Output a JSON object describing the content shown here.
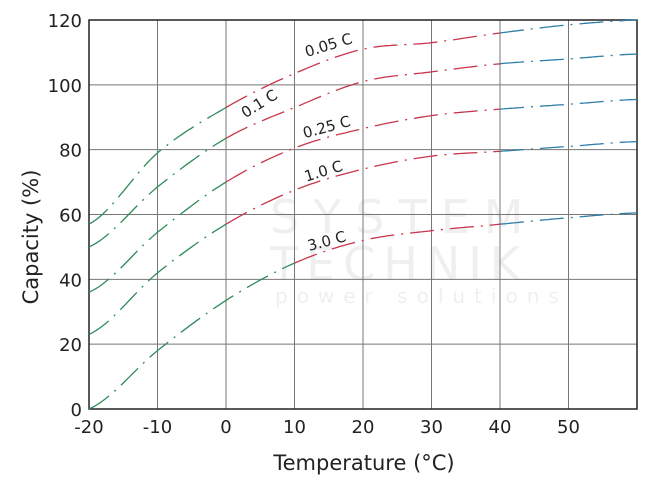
{
  "chart_data": {
    "type": "line",
    "xlabel": "Temperature (°C)",
    "ylabel": "Capacity (%)",
    "xlim": [
      -20,
      60
    ],
    "ylim": [
      0,
      120
    ],
    "xticks": [
      -20,
      -10,
      0,
      10,
      20,
      30,
      40,
      50
    ],
    "xtick_labels": [
      "-20",
      "-10",
      "0",
      "10",
      "20",
      "30",
      "40",
      "50"
    ],
    "yticks": [
      0,
      20,
      40,
      60,
      80,
      100,
      120
    ],
    "ytick_labels": [
      "0",
      "20",
      "40",
      "60",
      "80",
      "100",
      "120"
    ],
    "grid": true,
    "line_style": "dash-dot",
    "segment_colors": {
      "low": "#2e8b5a",
      "mid": "#c8364c",
      "high": "#2f7ea8"
    },
    "x": [
      -20,
      -10,
      0,
      10,
      20,
      30,
      40,
      50,
      60
    ],
    "series": [
      {
        "name": "0.05 C",
        "values": [
          57,
          79,
          93,
          103.5,
          111,
          113,
          116,
          118.5,
          120
        ],
        "color_breaks": [
          0,
          40
        ]
      },
      {
        "name": "0.1 C",
        "values": [
          50,
          68.5,
          83.5,
          93,
          101,
          104,
          106.5,
          108,
          109.5
        ],
        "color_breaks": [
          0,
          40
        ]
      },
      {
        "name": "0.25 C",
        "values": [
          36,
          54.5,
          70,
          80.5,
          86.5,
          90.5,
          92.5,
          94,
          95.5
        ],
        "color_breaks": [
          0,
          40
        ]
      },
      {
        "name": "1.0 C",
        "values": [
          23,
          42,
          57,
          67.5,
          74,
          78,
          79.5,
          81,
          82.5
        ],
        "color_breaks": [
          0,
          40
        ]
      },
      {
        "name": "3.0 C",
        "values": [
          0,
          18,
          33.5,
          45,
          52,
          55,
          57,
          59,
          60.5
        ],
        "color_breaks": [
          10,
          40
        ]
      }
    ]
  },
  "watermark": {
    "line1": "SYSTEM",
    "line2": "TECHNIK",
    "line3": "power solutions"
  }
}
